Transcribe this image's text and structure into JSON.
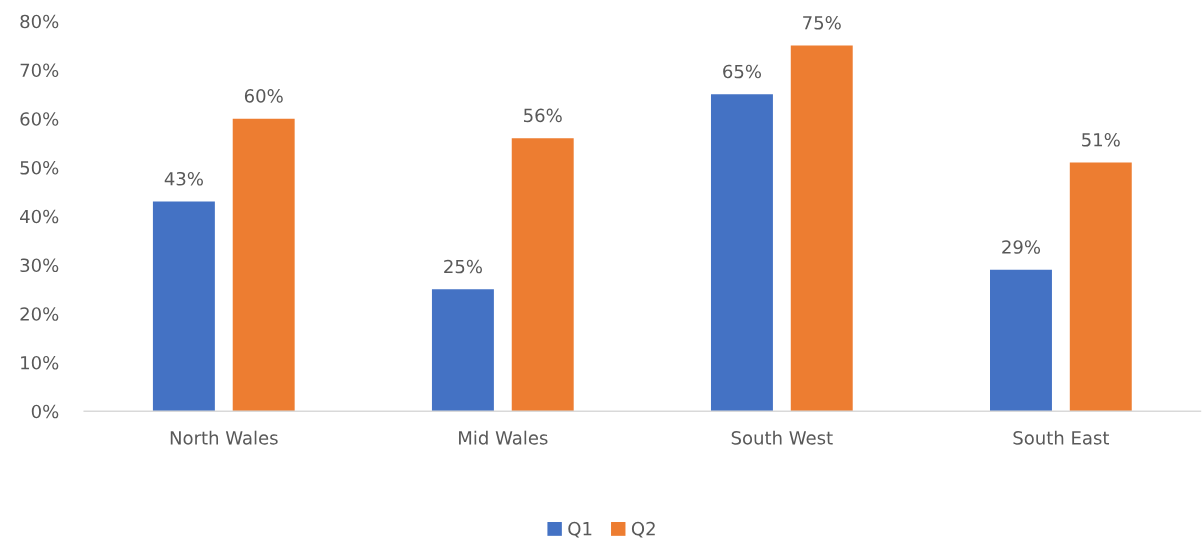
{
  "chart_data": {
    "type": "bar",
    "categories": [
      "North Wales",
      "Mid Wales",
      "South West",
      "South East"
    ],
    "series": [
      {
        "name": "Q1",
        "color": "#4472c4",
        "values": [
          43,
          25,
          65,
          29
        ],
        "value_labels": [
          "43%",
          "25%",
          "65%",
          "29%"
        ]
      },
      {
        "name": "Q2",
        "color": "#ed7d31",
        "values": [
          60,
          56,
          75,
          51
        ],
        "value_labels": [
          "60%",
          "56%",
          "75%",
          "51%"
        ]
      }
    ],
    "ylim": [
      0,
      80
    ],
    "yticks": [
      {
        "value": 0,
        "label": "0%"
      },
      {
        "value": 10,
        "label": "10%"
      },
      {
        "value": 20,
        "label": "20%"
      },
      {
        "value": 30,
        "label": "30%"
      },
      {
        "value": 40,
        "label": "40%"
      },
      {
        "value": 50,
        "label": "50%"
      },
      {
        "value": 60,
        "label": "60%"
      },
      {
        "value": 70,
        "label": "70%"
      },
      {
        "value": 80,
        "label": "80%"
      }
    ],
    "grid": false,
    "legend": "bottom"
  }
}
